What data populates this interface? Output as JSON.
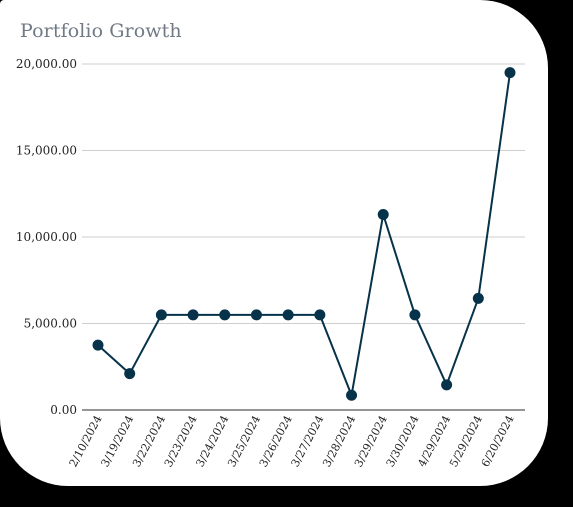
{
  "chart_data": {
    "type": "line",
    "title": "Portfolio Growth",
    "xlabel": "",
    "ylabel": "",
    "categories": [
      "2/10/2024",
      "3/19/2024",
      "3/22/2024",
      "3/23/2024",
      "3/24/2024",
      "3/25/2024",
      "3/26/2024",
      "3/27/2024",
      "3/28/2024",
      "3/29/2024",
      "3/30/2024",
      "4/29/2024",
      "5/29/2024",
      "6/20/2024"
    ],
    "series": [
      {
        "values": [
          3750,
          2100,
          5500,
          5500,
          5500,
          5500,
          5500,
          5500,
          850,
          11300,
          5500,
          1450,
          6450,
          19500
        ],
        "color": "#06324a"
      }
    ],
    "ylim": [
      0,
      20000
    ],
    "yticks": [
      "0.00",
      "5,000.00",
      "10,000.00",
      "15,000.00",
      "20,000.00"
    ],
    "ytick_values": [
      0,
      5000,
      10000,
      15000,
      20000
    ],
    "grid": true,
    "legend": "none"
  }
}
